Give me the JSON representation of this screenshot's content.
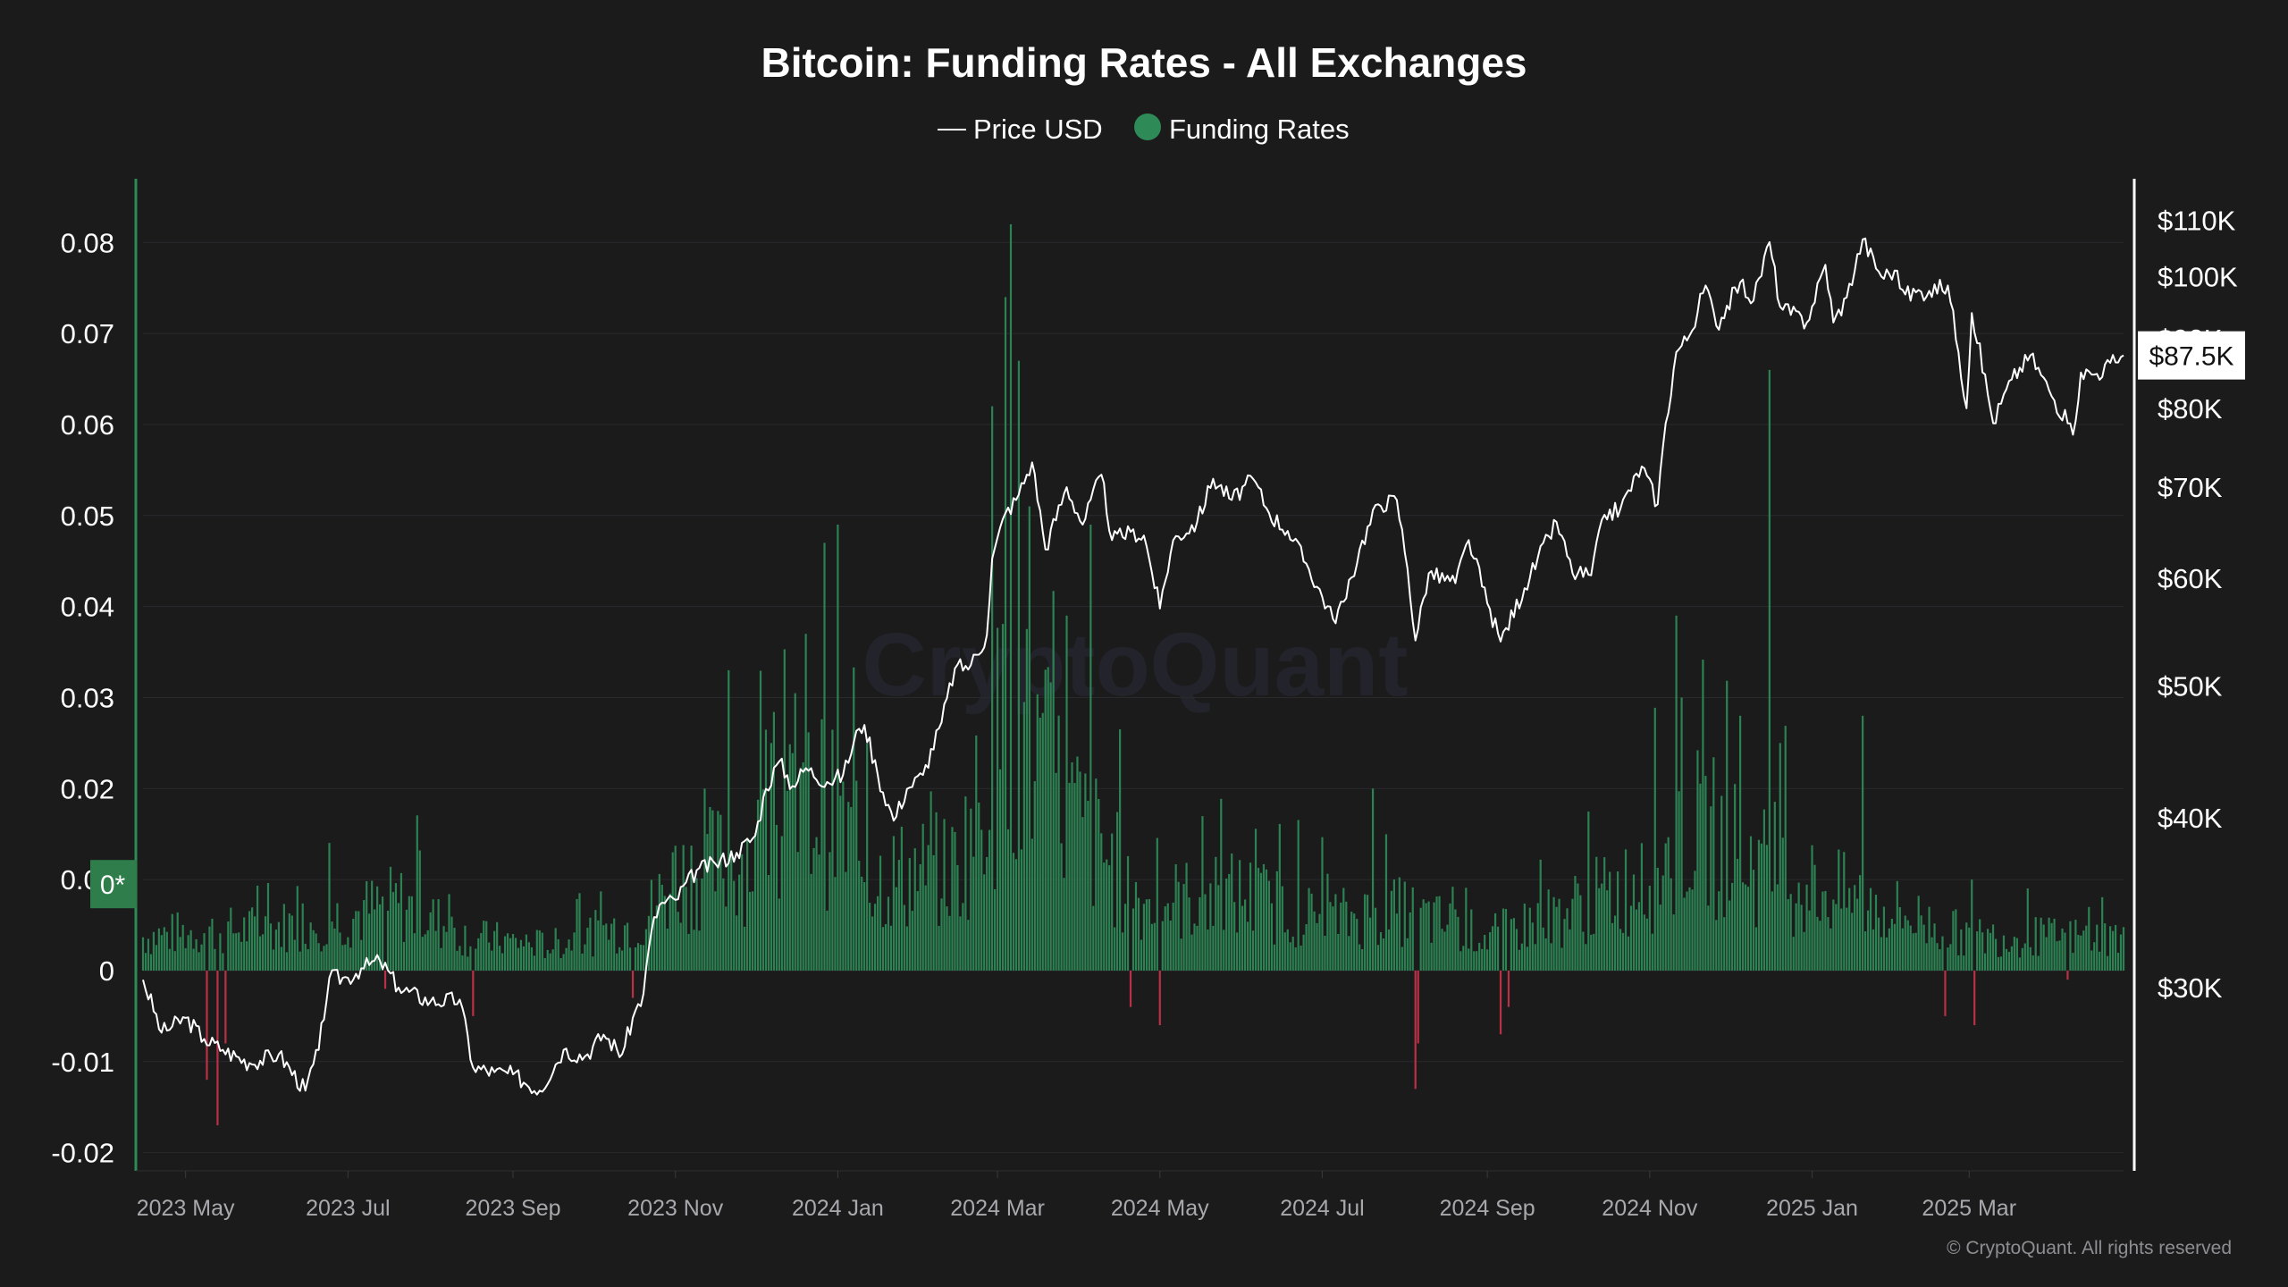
{
  "chart_data": {
    "type": "bar+line",
    "title": "Bitcoin: Funding Rates - All Exchanges",
    "watermark": "CryptoQuant",
    "copyright": "© CryptoQuant. All rights reserved",
    "legend": [
      {
        "name": "Price USD",
        "symbol": "line",
        "color": "#ffffff"
      },
      {
        "name": "Funding Rates",
        "symbol": "dot",
        "color": "#2e8b57"
      }
    ],
    "left_axis": {
      "ticks": [
        "0.08",
        "0.07",
        "0.06",
        "0.05",
        "0.04",
        "0.03",
        "0.02",
        "0.01",
        "0",
        "-0.01",
        "-0.02"
      ],
      "values": [
        0.08,
        0.07,
        0.06,
        0.05,
        0.04,
        0.03,
        0.02,
        0.01,
        0,
        -0.01,
        -0.02
      ],
      "range": [
        -0.022,
        0.087
      ],
      "badge": "0*",
      "badge_value": 0.0095
    },
    "right_axis": {
      "scale": "log",
      "ticks": [
        "$110K",
        "$100K",
        "$90K",
        "$80K",
        "$70K",
        "$60K",
        "$50K",
        "$40K",
        "$30K"
      ],
      "values": [
        110000,
        100000,
        90000,
        80000,
        70000,
        60000,
        50000,
        40000,
        30000
      ],
      "range": [
        22000,
        118000
      ],
      "current_label": "$87.5K",
      "current_value": 87500
    },
    "x_axis": {
      "range": [
        "2023-04-15",
        "2025-04-28"
      ],
      "ticks": [
        {
          "label": "2023 May",
          "date": "2023-05-01"
        },
        {
          "label": "2023 Jul",
          "date": "2023-07-01"
        },
        {
          "label": "2023 Sep",
          "date": "2023-09-01"
        },
        {
          "label": "2023 Nov",
          "date": "2023-11-01"
        },
        {
          "label": "2024 Jan",
          "date": "2024-01-01"
        },
        {
          "label": "2024 Mar",
          "date": "2024-03-01"
        },
        {
          "label": "2024 May",
          "date": "2024-05-01"
        },
        {
          "label": "2024 Jul",
          "date": "2024-07-01"
        },
        {
          "label": "2024 Sep",
          "date": "2024-09-01"
        },
        {
          "label": "2024 Nov",
          "date": "2024-11-01"
        },
        {
          "label": "2025 Jan",
          "date": "2025-01-01"
        },
        {
          "label": "2025 Mar",
          "date": "2025-03-01"
        }
      ]
    },
    "price_series": {
      "name": "Price USD",
      "points": [
        [
          "2023-04-15",
          30400
        ],
        [
          "2023-04-22",
          27800
        ],
        [
          "2023-05-01",
          28500
        ],
        [
          "2023-05-08",
          27500
        ],
        [
          "2023-05-15",
          27000
        ],
        [
          "2023-05-25",
          26400
        ],
        [
          "2023-06-05",
          26800
        ],
        [
          "2023-06-15",
          25200
        ],
        [
          "2023-06-20",
          27000
        ],
        [
          "2023-06-24",
          30500
        ],
        [
          "2023-07-01",
          30500
        ],
        [
          "2023-07-06",
          31000
        ],
        [
          "2023-07-13",
          31400
        ],
        [
          "2023-07-20",
          30000
        ],
        [
          "2023-08-01",
          29300
        ],
        [
          "2023-08-12",
          29400
        ],
        [
          "2023-08-17",
          26200
        ],
        [
          "2023-08-25",
          26000
        ],
        [
          "2023-09-01",
          25900
        ],
        [
          "2023-09-11",
          25200
        ],
        [
          "2023-09-20",
          27000
        ],
        [
          "2023-09-28",
          26700
        ],
        [
          "2023-10-05",
          27700
        ],
        [
          "2023-10-12",
          26800
        ],
        [
          "2023-10-16",
          28500
        ],
        [
          "2023-10-20",
          29700
        ],
        [
          "2023-10-23",
          33000
        ],
        [
          "2023-10-26",
          34500
        ],
        [
          "2023-11-01",
          34800
        ],
        [
          "2023-11-09",
          36600
        ],
        [
          "2023-11-16",
          37000
        ],
        [
          "2023-11-24",
          37700
        ],
        [
          "2023-12-01",
          38800
        ],
        [
          "2023-12-05",
          42000
        ],
        [
          "2023-12-10",
          44000
        ],
        [
          "2023-12-15",
          42200
        ],
        [
          "2023-12-20",
          43500
        ],
        [
          "2023-12-28",
          42500
        ],
        [
          "2024-01-03",
          43000
        ],
        [
          "2024-01-09",
          46500
        ],
        [
          "2024-01-11",
          46800
        ],
        [
          "2024-01-16",
          43000
        ],
        [
          "2024-01-22",
          39800
        ],
        [
          "2024-01-27",
          42000
        ],
        [
          "2024-02-02",
          43000
        ],
        [
          "2024-02-09",
          47000
        ],
        [
          "2024-02-14",
          51500
        ],
        [
          "2024-02-20",
          51800
        ],
        [
          "2024-02-26",
          54500
        ],
        [
          "2024-02-28",
          62000
        ],
        [
          "2024-03-04",
          67000
        ],
        [
          "2024-03-08",
          68500
        ],
        [
          "2024-03-14",
          73000
        ],
        [
          "2024-03-19",
          63000
        ],
        [
          "2024-03-27",
          70000
        ],
        [
          "2024-04-02",
          65700
        ],
        [
          "2024-04-09",
          71500
        ],
        [
          "2024-04-13",
          64000
        ],
        [
          "2024-04-20",
          64900
        ],
        [
          "2024-04-25",
          64500
        ],
        [
          "2024-05-01",
          57000
        ],
        [
          "2024-05-06",
          64000
        ],
        [
          "2024-05-15",
          66000
        ],
        [
          "2024-05-21",
          71000
        ],
        [
          "2024-05-28",
          68500
        ],
        [
          "2024-06-05",
          71000
        ],
        [
          "2024-06-11",
          67000
        ],
        [
          "2024-06-18",
          65000
        ],
        [
          "2024-06-25",
          61500
        ],
        [
          "2024-07-05",
          56000
        ],
        [
          "2024-07-10",
          58000
        ],
        [
          "2024-07-15",
          63000
        ],
        [
          "2024-07-22",
          68000
        ],
        [
          "2024-07-29",
          68500
        ],
        [
          "2024-08-02",
          61000
        ],
        [
          "2024-08-05",
          54000
        ],
        [
          "2024-08-10",
          60500
        ],
        [
          "2024-08-20",
          59500
        ],
        [
          "2024-08-25",
          64000
        ],
        [
          "2024-09-01",
          57500
        ],
        [
          "2024-09-06",
          53900
        ],
        [
          "2024-09-15",
          59000
        ],
        [
          "2024-09-27",
          66000
        ],
        [
          "2024-10-03",
          60500
        ],
        [
          "2024-10-10",
          60300
        ],
        [
          "2024-10-15",
          66800
        ],
        [
          "2024-10-21",
          67500
        ],
        [
          "2024-10-29",
          72500
        ],
        [
          "2024-11-04",
          68000
        ],
        [
          "2024-11-06",
          75000
        ],
        [
          "2024-11-11",
          88000
        ],
        [
          "2024-11-16",
          90500
        ],
        [
          "2024-11-22",
          98500
        ],
        [
          "2024-11-26",
          92000
        ],
        [
          "2024-12-05",
          99000
        ],
        [
          "2024-12-10",
          96000
        ],
        [
          "2024-12-16",
          106000
        ],
        [
          "2024-12-20",
          95000
        ],
        [
          "2024-12-30",
          92500
        ],
        [
          "2025-01-06",
          102000
        ],
        [
          "2025-01-09",
          92500
        ],
        [
          "2025-01-14",
          96500
        ],
        [
          "2025-01-20",
          106500
        ],
        [
          "2025-01-27",
          100000
        ],
        [
          "2025-02-01",
          101000
        ],
        [
          "2025-02-05",
          97000
        ],
        [
          "2025-02-14",
          97600
        ],
        [
          "2025-02-21",
          98500
        ],
        [
          "2025-02-25",
          88000
        ],
        [
          "2025-02-28",
          80000
        ],
        [
          "2025-03-02",
          94000
        ],
        [
          "2025-03-10",
          78000
        ],
        [
          "2025-03-17",
          84000
        ],
        [
          "2025-03-24",
          87500
        ],
        [
          "2025-03-31",
          82500
        ],
        [
          "2025-04-07",
          78000
        ],
        [
          "2025-04-09",
          76500
        ],
        [
          "2025-04-12",
          85000
        ],
        [
          "2025-04-18",
          84800
        ],
        [
          "2025-04-28",
          87500
        ]
      ]
    },
    "funding_series": {
      "name": "Funding Rates",
      "positive_color": "#2e8b57",
      "negative_color": "#c8324a",
      "base": [
        [
          "2023-04-15",
          0.004
        ],
        [
          "2023-05-01",
          0.0045
        ],
        [
          "2023-06-01",
          0.005
        ],
        [
          "2023-07-01",
          0.0065
        ],
        [
          "2023-07-20",
          0.008
        ],
        [
          "2023-08-15",
          0.004
        ],
        [
          "2023-09-15",
          0.003
        ],
        [
          "2023-10-20",
          0.006
        ],
        [
          "2023-11-01",
          0.011
        ],
        [
          "2023-12-01",
          0.014
        ],
        [
          "2023-12-25",
          0.02
        ],
        [
          "2024-01-15",
          0.011
        ],
        [
          "2024-02-15",
          0.012
        ],
        [
          "2024-03-05",
          0.03
        ],
        [
          "2024-03-30",
          0.018
        ],
        [
          "2024-04-25",
          0.008
        ],
        [
          "2024-06-01",
          0.009
        ],
        [
          "2024-07-01",
          0.006
        ],
        [
          "2024-08-01",
          0.007
        ],
        [
          "2024-09-01",
          0.004
        ],
        [
          "2024-10-01",
          0.007
        ],
        [
          "2024-11-01",
          0.011
        ],
        [
          "2024-11-20",
          0.017
        ],
        [
          "2024-12-20",
          0.011
        ],
        [
          "2025-02-01",
          0.007
        ],
        [
          "2025-03-01",
          0.004
        ],
        [
          "2025-04-28",
          0.004
        ]
      ],
      "spikes": [
        [
          "2023-10-31",
          0.013
        ],
        [
          "2023-11-12",
          0.02
        ],
        [
          "2023-11-21",
          0.033
        ],
        [
          "2023-12-07",
          0.025
        ],
        [
          "2023-12-20",
          0.037
        ],
        [
          "2023-12-27",
          0.047
        ],
        [
          "2024-01-01",
          0.049
        ],
        [
          "2024-01-12",
          0.025
        ],
        [
          "2024-02-28",
          0.062
        ],
        [
          "2024-03-04",
          0.074
        ],
        [
          "2024-03-06",
          0.082
        ],
        [
          "2024-03-09",
          0.067
        ],
        [
          "2024-03-13",
          0.051
        ],
        [
          "2024-03-27",
          0.039
        ],
        [
          "2024-04-05",
          0.049
        ],
        [
          "2024-07-20",
          0.02
        ],
        [
          "2024-10-29",
          0.014
        ],
        [
          "2024-11-11",
          0.039
        ],
        [
          "2024-11-13",
          0.03
        ],
        [
          "2024-12-05",
          0.028
        ],
        [
          "2024-12-16",
          0.066
        ],
        [
          "2024-12-20",
          0.025
        ],
        [
          "2025-01-20",
          0.028
        ],
        [
          "2025-03-02",
          0.01
        ]
      ],
      "negatives": [
        [
          "2023-05-13",
          -0.017
        ],
        [
          "2023-05-09",
          -0.012
        ],
        [
          "2023-05-16",
          -0.008
        ],
        [
          "2023-08-17",
          -0.005
        ],
        [
          "2023-07-15",
          -0.002
        ],
        [
          "2023-10-16",
          -0.003
        ],
        [
          "2024-04-20",
          -0.004
        ],
        [
          "2024-05-01",
          -0.006
        ],
        [
          "2024-08-05",
          -0.013
        ],
        [
          "2024-08-06",
          -0.008
        ],
        [
          "2024-09-06",
          -0.007
        ],
        [
          "2024-09-09",
          -0.004
        ],
        [
          "2025-02-20",
          -0.005
        ],
        [
          "2025-03-03",
          -0.006
        ],
        [
          "2025-04-07",
          -0.001
        ]
      ]
    }
  }
}
